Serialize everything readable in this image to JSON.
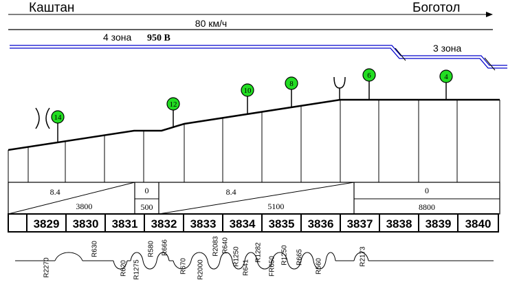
{
  "header": {
    "station_from": "Каштан",
    "station_to": "Боготол",
    "speed_limit": "80 км/ч"
  },
  "power": {
    "zone_left": "4 зона",
    "voltage": "950 В",
    "zone_right": "3 зона",
    "line_color": "#0000cc"
  },
  "signals": [
    {
      "label": "14"
    },
    {
      "label": "12"
    },
    {
      "label": "10"
    },
    {
      "label": "8"
    },
    {
      "label": "6"
    },
    {
      "label": "4"
    }
  ],
  "signal_color": "#22dd22",
  "gradients": [
    {
      "slope": "8.4",
      "length": "3800"
    },
    {
      "slope": "0",
      "length": "500"
    },
    {
      "slope": "8.4",
      "length": "5100"
    },
    {
      "slope": "0",
      "length": "8800"
    }
  ],
  "pickets": [
    "3829",
    "3830",
    "3831",
    "3832",
    "3833",
    "3834",
    "3835",
    "3836",
    "3837",
    "3838",
    "3839",
    "3840"
  ],
  "curves": [
    "R2270",
    "R630",
    "R620",
    "R1275",
    "R580",
    "R666",
    "R670",
    "R2000",
    "R2083",
    "R640",
    "R1250",
    "R641",
    "R1282",
    "FR650",
    "R1250",
    "R665",
    "R560",
    "R2173"
  ]
}
